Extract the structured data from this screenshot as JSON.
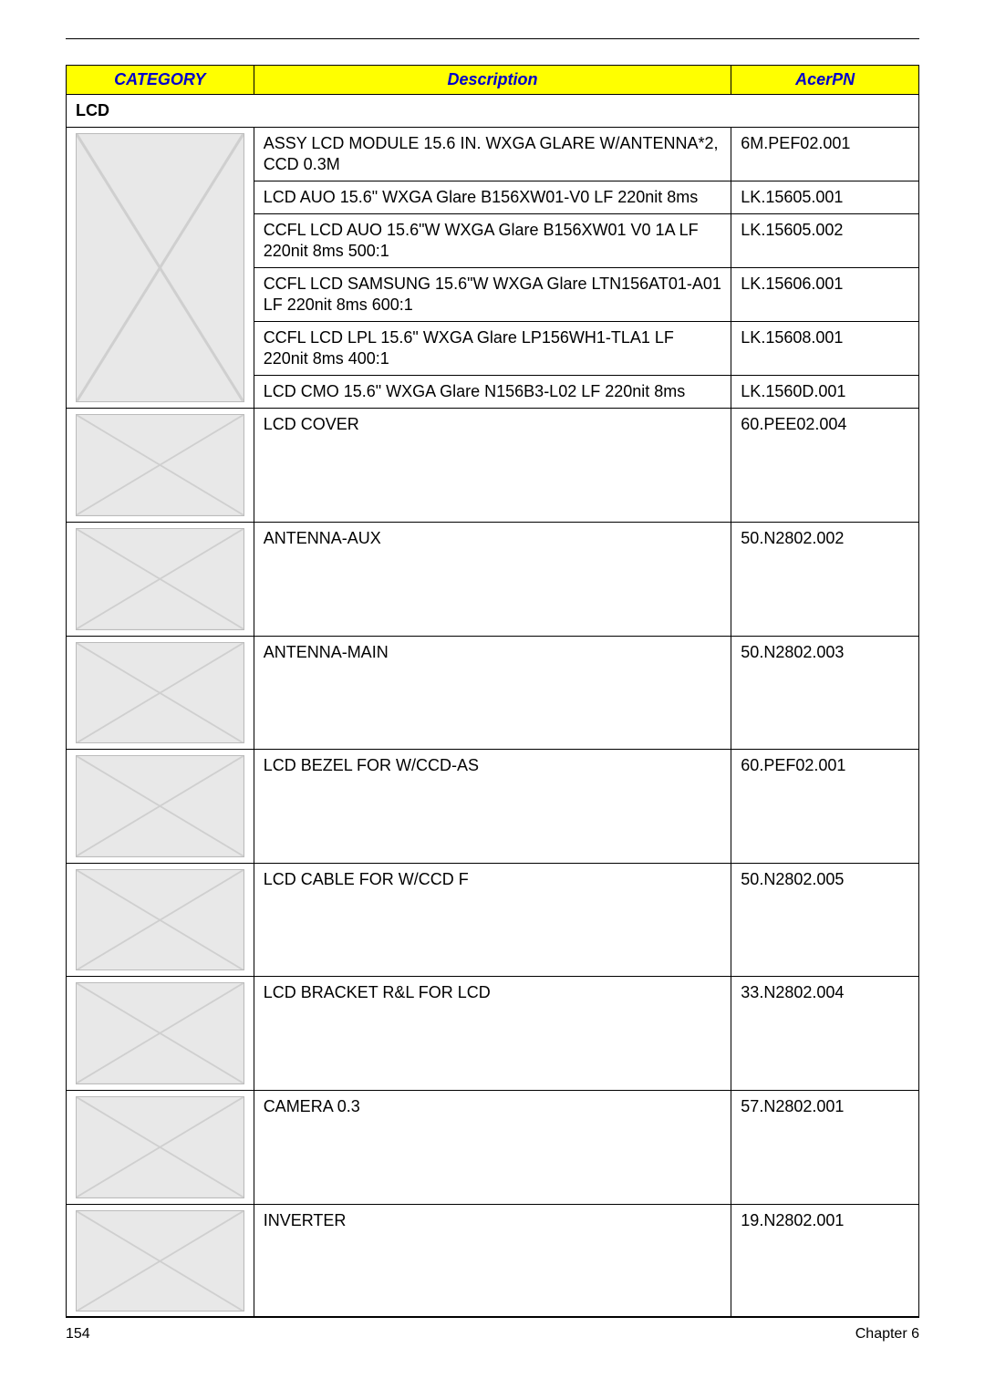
{
  "headers": {
    "category": "CATEGORY",
    "description": "Description",
    "acerpn": "AcerPN"
  },
  "section_title": "LCD",
  "rows": [
    {
      "type": "img_multi",
      "img_rows": 6,
      "img_class": "tall",
      "items": [
        {
          "desc": "ASSY LCD MODULE 15.6 IN. WXGA GLARE W/ANTENNA*2, CCD 0.3M",
          "pn": "6M.PEF02.001"
        },
        {
          "desc": "LCD AUO 15.6\" WXGA Glare B156XW01-V0 LF 220nit 8ms",
          "pn": "LK.15605.001"
        },
        {
          "desc": "CCFL LCD AUO 15.6\"W WXGA Glare B156XW01 V0 1A LF 220nit 8ms 500:1",
          "pn": "LK.15605.002"
        },
        {
          "desc": "CCFL LCD SAMSUNG 15.6\"W WXGA Glare LTN156AT01-A01 LF 220nit 8ms 600:1",
          "pn": "LK.15606.001"
        },
        {
          "desc": "CCFL LCD LPL 15.6\" WXGA Glare LP156WH1-TLA1 LF 220nit 8ms 400:1",
          "pn": "LK.15608.001"
        },
        {
          "desc": "LCD CMO 15.6\" WXGA Glare N156B3-L02 LF 220nit 8ms",
          "pn": "LK.1560D.001"
        }
      ]
    },
    {
      "type": "single",
      "img_class": "tall",
      "desc": "LCD COVER",
      "pn": "60.PEE02.004"
    },
    {
      "type": "single",
      "img_class": "tall",
      "desc": "ANTENNA-AUX",
      "pn": "50.N2802.002"
    },
    {
      "type": "single",
      "img_class": "tall",
      "desc": "ANTENNA-MAIN",
      "pn": "50.N2802.003"
    },
    {
      "type": "single",
      "img_class": "tall",
      "desc": "LCD BEZEL FOR W/CCD-AS",
      "pn": "60.PEF02.001"
    },
    {
      "type": "single",
      "img_class": "tall",
      "desc": "LCD CABLE FOR W/CCD F",
      "pn": "50.N2802.005"
    },
    {
      "type": "single",
      "img_class": "bracket",
      "desc": "LCD BRACKET R&L FOR LCD",
      "pn": "33.N2802.004"
    },
    {
      "type": "single",
      "img_class": "thin",
      "desc": "CAMERA 0.3",
      "pn": "57.N2802.001"
    },
    {
      "type": "single",
      "img_class": "thin",
      "desc": "INVERTER",
      "pn": "19.N2802.001"
    }
  ],
  "footer": {
    "page": "154",
    "chapter": "Chapter 6"
  },
  "colors": {
    "header_bg": "#ffff00",
    "header_fg": "#0000cc",
    "rule": "#000000",
    "border": "#000000",
    "text": "#000000"
  }
}
